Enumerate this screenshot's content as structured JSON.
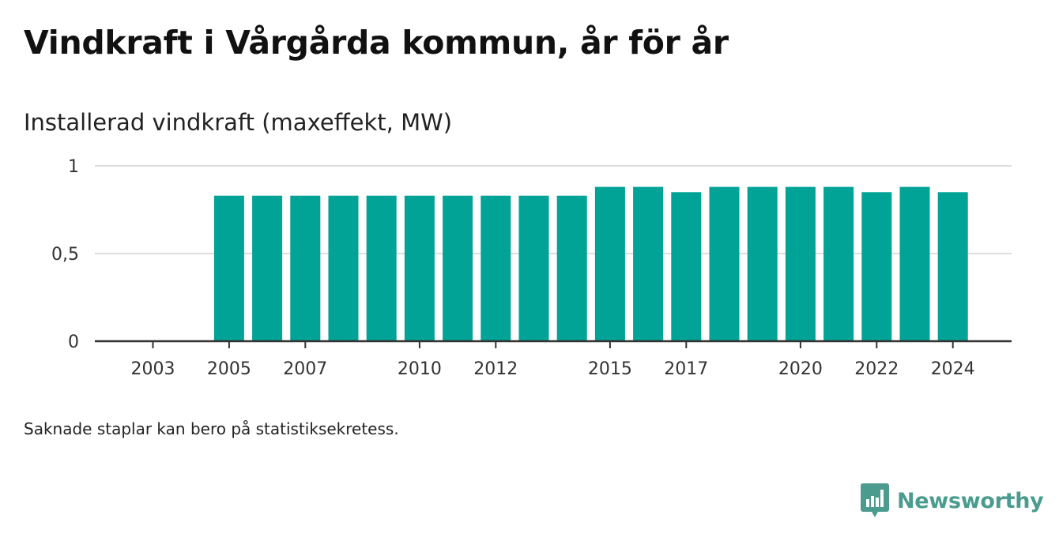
{
  "title": "Vindkraft i Vårgårda kommun, år för år",
  "note": "Saknade staplar kan bero på statistiksekretess.",
  "brand": {
    "name": "Newsworthy",
    "color": "#4b9c8e",
    "icon": "newsworthy-chat-bars-icon"
  },
  "colors": {
    "bar": "#00a396",
    "grid": "#dddddd",
    "axis": "#333333"
  },
  "chart_data": {
    "type": "bar",
    "title": "",
    "ylabel": "Installerad vindkraft (maxeffekt, MW)",
    "xlabel": "",
    "ylim": [
      0,
      1
    ],
    "yticks": [
      0,
      0.5,
      1
    ],
    "ytick_labels": [
      "0",
      "0,5",
      "1"
    ],
    "grid": true,
    "categories": [
      "2003",
      "2004",
      "2005",
      "2006",
      "2007",
      "2008",
      "2009",
      "2010",
      "2011",
      "2012",
      "2013",
      "2014",
      "2015",
      "2016",
      "2017",
      "2018",
      "2019",
      "2020",
      "2021",
      "2022",
      "2023",
      "2024"
    ],
    "xtick_labels": [
      "2003",
      "2005",
      "2007",
      "2010",
      "2012",
      "2015",
      "2017",
      "2020",
      "2022",
      "2024"
    ],
    "values": [
      null,
      null,
      0.83,
      0.83,
      0.83,
      0.83,
      0.83,
      0.83,
      0.83,
      0.83,
      0.83,
      0.83,
      0.88,
      0.88,
      0.85,
      0.88,
      0.88,
      0.88,
      0.88,
      0.85,
      0.88,
      0.85
    ]
  }
}
